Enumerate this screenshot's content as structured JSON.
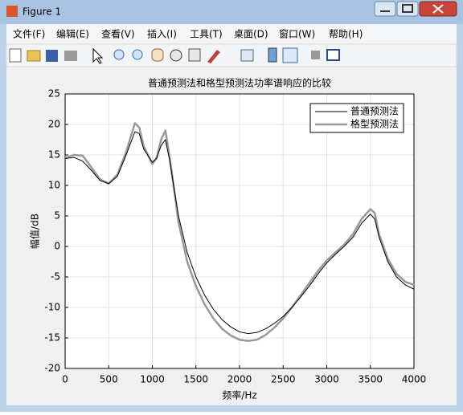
{
  "window": {
    "title": "Figure 1",
    "menu": [
      "文件(F)",
      "编辑(E)",
      "查看(V)",
      "插入(I)",
      "工具(T)",
      "桌面(D)",
      "窗口(W)",
      "帮助(H)"
    ]
  },
  "chart_data": {
    "type": "line",
    "title": "普通预测法和格型预测法功率谱响应的比较",
    "x_label": "频率/Hz",
    "y_label": "幅值/dB",
    "x": [
      0,
      100,
      200,
      300,
      400,
      500,
      600,
      700,
      800,
      850,
      900,
      1000,
      1050,
      1100,
      1150,
      1200,
      1300,
      1400,
      1500,
      1600,
      1700,
      1800,
      1900,
      2000,
      2100,
      2200,
      2300,
      2400,
      2500,
      2600,
      2700,
      2800,
      2900,
      3000,
      3100,
      3200,
      3300,
      3400,
      3500,
      3550,
      3600,
      3700,
      3800,
      3900,
      4000
    ],
    "series": [
      {
        "name": "普通预测法",
        "color": "#000000",
        "width": 1,
        "values": [
          14.4,
          14.6,
          14,
          12.5,
          10.8,
          10.3,
          11.5,
          15,
          18.8,
          18.5,
          16,
          13.8,
          14.5,
          16.5,
          17.5,
          14,
          5,
          -1,
          -5,
          -8,
          -10.3,
          -12,
          -13.2,
          -14,
          -14.3,
          -14.1,
          -13.5,
          -12.6,
          -11.5,
          -10,
          -8.3,
          -6.5,
          -4.5,
          -2.7,
          -1.3,
          0,
          1.5,
          3.8,
          5.3,
          4.5,
          1.5,
          -2.5,
          -5,
          -6.3,
          -7
        ]
      },
      {
        "name": "格型预测法",
        "color": "#999999",
        "width": 2.5,
        "values": [
          14.5,
          15,
          14.9,
          13,
          11,
          10.3,
          11.8,
          15.5,
          20.2,
          19.5,
          16.5,
          13.5,
          14.5,
          17.5,
          19,
          14.5,
          4,
          -2.5,
          -6.5,
          -9.5,
          -11.8,
          -13.5,
          -14.6,
          -15.3,
          -15.5,
          -15.3,
          -14.5,
          -13.3,
          -11.8,
          -10,
          -8,
          -6,
          -4,
          -2.3,
          -1,
          0.3,
          2,
          4.5,
          6.1,
          5.5,
          2,
          -2,
          -4.5,
          -5.8,
          -6.3
        ]
      }
    ],
    "xlim": [
      0,
      4000
    ],
    "xticks": [
      0,
      500,
      1000,
      1500,
      2000,
      2500,
      3000,
      3500,
      4000
    ],
    "ylim": [
      -20,
      25
    ],
    "yticks": [
      -20,
      -15,
      -10,
      -5,
      0,
      5,
      10,
      15,
      20,
      25
    ],
    "grid": true,
    "legend": "northeast"
  }
}
